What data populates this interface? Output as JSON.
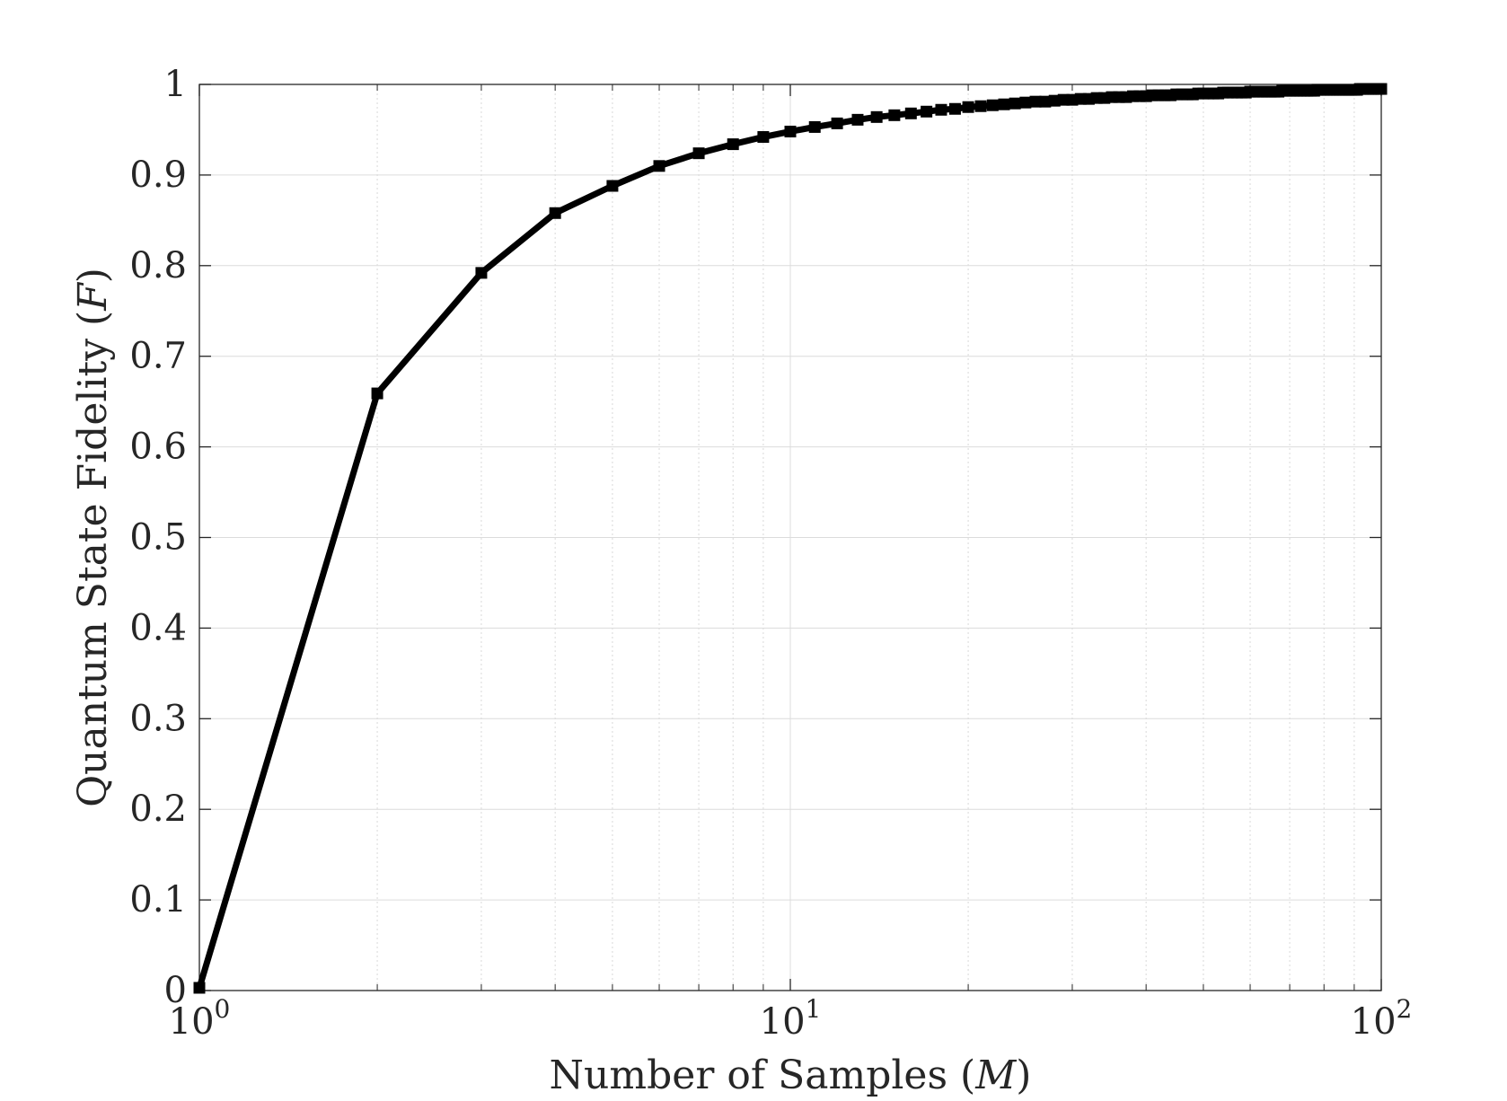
{
  "chart_data": {
    "type": "line",
    "xscale": "log",
    "xlim": [
      1,
      100
    ],
    "ylim": [
      0,
      1
    ],
    "grid": true,
    "minor_grid_x": true,
    "xlabel": {
      "text": "Number of Samples (",
      "var": "M",
      "close": ")"
    },
    "ylabel": {
      "text": "Quantum State Fidelity (",
      "var": "F",
      "close": ")"
    },
    "xticks": [
      {
        "value": 1,
        "base": "10",
        "exp": "0"
      },
      {
        "value": 10,
        "base": "10",
        "exp": "1"
      },
      {
        "value": 100,
        "base": "10",
        "exp": "2"
      }
    ],
    "yticks": [
      {
        "value": 0,
        "label": "0"
      },
      {
        "value": 0.1,
        "label": "0.1"
      },
      {
        "value": 0.2,
        "label": "0.2"
      },
      {
        "value": 0.3,
        "label": "0.3"
      },
      {
        "value": 0.4,
        "label": "0.4"
      },
      {
        "value": 0.5,
        "label": "0.5"
      },
      {
        "value": 0.6,
        "label": "0.6"
      },
      {
        "value": 0.7,
        "label": "0.7"
      },
      {
        "value": 0.8,
        "label": "0.8"
      },
      {
        "value": 0.9,
        "label": "0.9"
      },
      {
        "value": 1,
        "label": "1"
      }
    ],
    "series": [
      {
        "color": "#000000",
        "marker": "square",
        "x": [
          1,
          2,
          3,
          4,
          5,
          6,
          7,
          8,
          9,
          10,
          11,
          12,
          13,
          14,
          15,
          16,
          17,
          18,
          19,
          20,
          21,
          22,
          23,
          24,
          25,
          26,
          27,
          28,
          29,
          30,
          31,
          32,
          33,
          34,
          35,
          36,
          37,
          38,
          39,
          40,
          41,
          42,
          43,
          44,
          45,
          46,
          47,
          48,
          49,
          50,
          51,
          52,
          53,
          54,
          55,
          56,
          57,
          58,
          59,
          60,
          61,
          62,
          63,
          64,
          65,
          66,
          67,
          68,
          69,
          70,
          71,
          72,
          73,
          74,
          75,
          76,
          77,
          78,
          79,
          80,
          81,
          82,
          83,
          84,
          85,
          86,
          87,
          88,
          89,
          90,
          91,
          92,
          93,
          94,
          95,
          96,
          97,
          98,
          99,
          100
        ],
        "y": [
          0.003,
          0.659,
          0.792,
          0.858,
          0.888,
          0.91,
          0.924,
          0.934,
          0.942,
          0.948,
          0.953,
          0.957,
          0.961,
          0.964,
          0.966,
          0.968,
          0.97,
          0.972,
          0.973,
          0.975,
          0.976,
          0.977,
          0.978,
          0.979,
          0.98,
          0.981,
          0.981,
          0.982,
          0.983,
          0.983,
          0.984,
          0.984,
          0.985,
          0.985,
          0.986,
          0.986,
          0.986,
          0.987,
          0.987,
          0.987,
          0.988,
          0.988,
          0.988,
          0.988,
          0.989,
          0.989,
          0.989,
          0.989,
          0.99,
          0.99,
          0.99,
          0.99,
          0.99,
          0.991,
          0.991,
          0.991,
          0.991,
          0.991,
          0.991,
          0.992,
          0.992,
          0.992,
          0.992,
          0.992,
          0.992,
          0.992,
          0.992,
          0.993,
          0.993,
          0.993,
          0.993,
          0.993,
          0.993,
          0.993,
          0.993,
          0.993,
          0.993,
          0.994,
          0.994,
          0.994,
          0.994,
          0.994,
          0.994,
          0.994,
          0.994,
          0.994,
          0.994,
          0.994,
          0.994,
          0.994,
          0.994,
          0.995,
          0.995,
          0.995,
          0.995,
          0.995,
          0.995,
          0.995,
          0.995,
          0.995
        ]
      }
    ]
  }
}
